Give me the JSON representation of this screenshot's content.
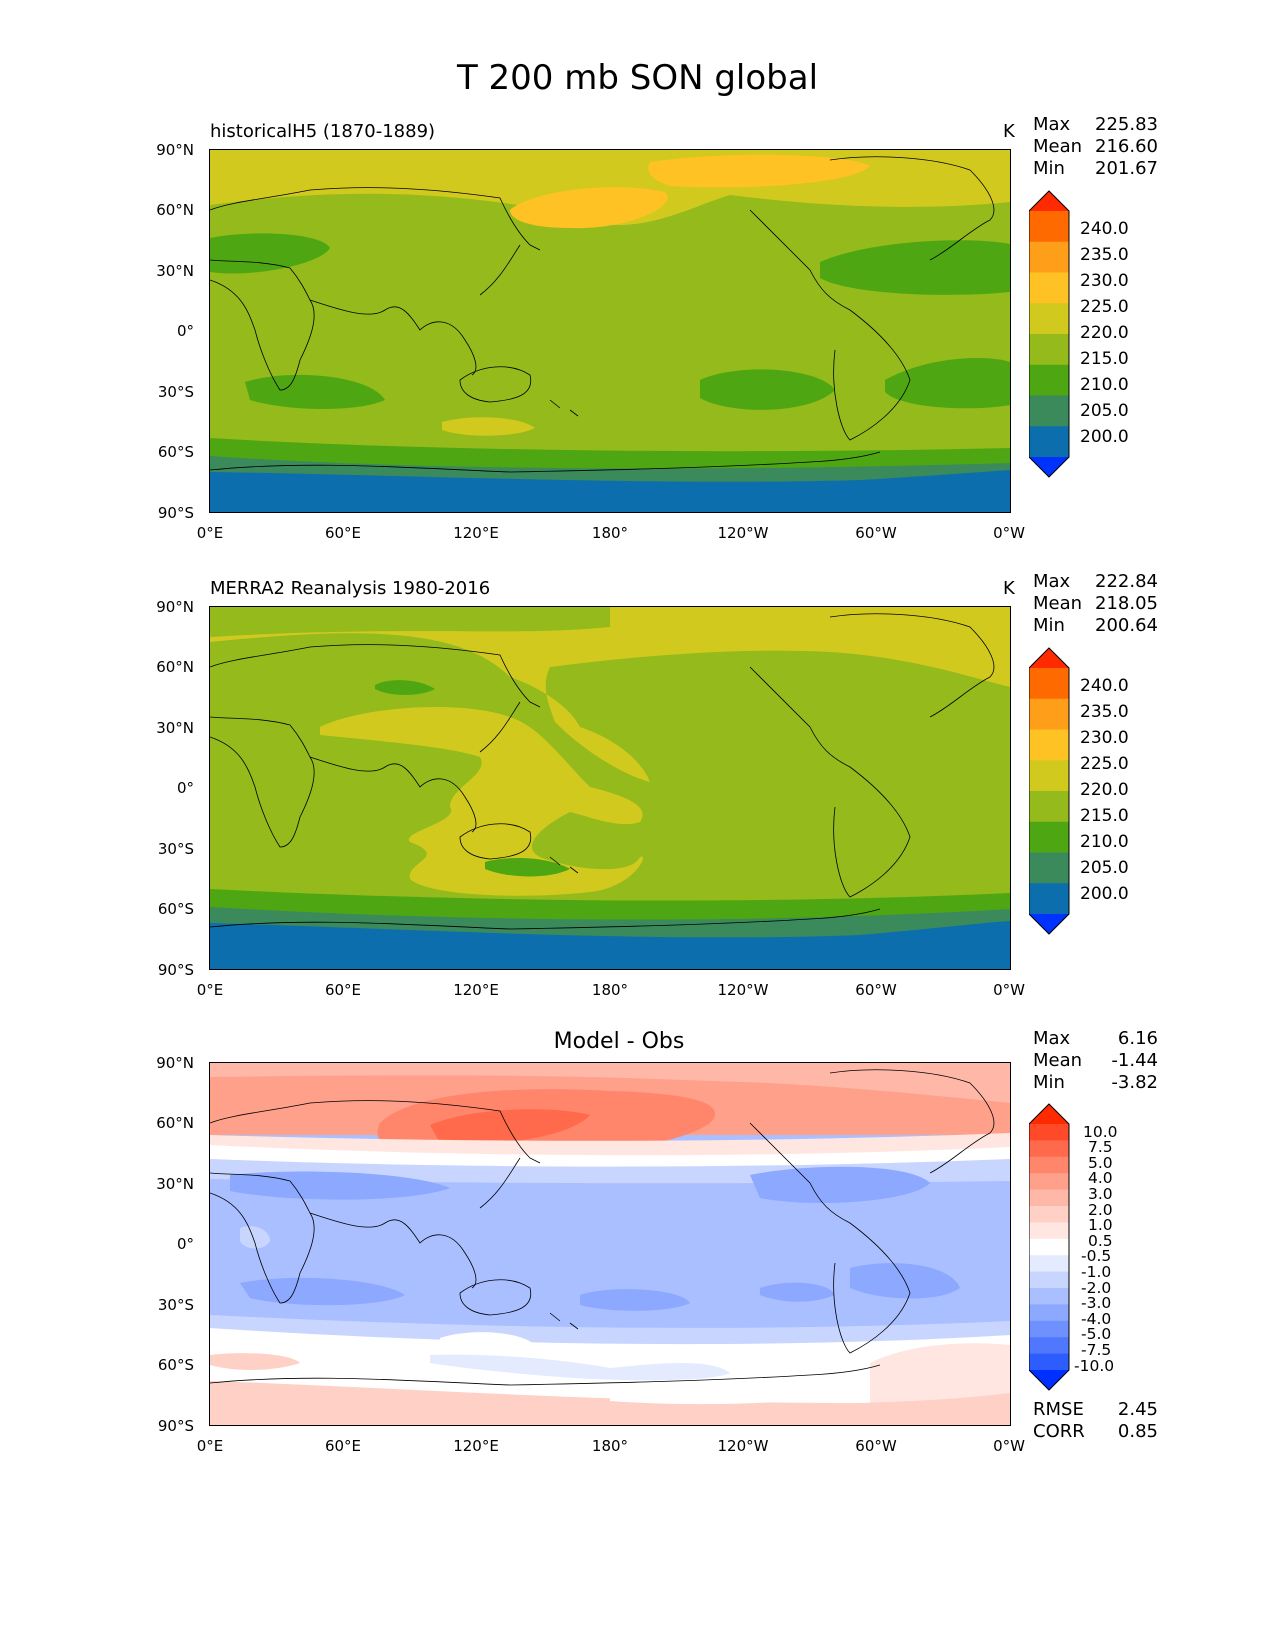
{
  "figure_title": "T 200 mb SON global",
  "x_ticks": [
    "0°E",
    "60°E",
    "120°E",
    "180°",
    "120°W",
    "60°W",
    "0°W"
  ],
  "y_ticks": [
    "90°N",
    "60°N",
    "30°N",
    "0°",
    "30°S",
    "60°S",
    "90°S"
  ],
  "panels": [
    {
      "title": "historicalH5 (1870-1889)",
      "units": "K",
      "stats": [
        {
          "label": "Max",
          "value": "225.83"
        },
        {
          "label": "Mean",
          "value": "216.60"
        },
        {
          "label": "Min",
          "value": "201.67"
        }
      ]
    },
    {
      "title": "MERRA2 Reanalysis 1980-2016",
      "units": "K",
      "stats": [
        {
          "label": "Max",
          "value": "222.84"
        },
        {
          "label": "Mean",
          "value": "218.05"
        },
        {
          "label": "Min",
          "value": "200.64"
        }
      ]
    },
    {
      "title": "Model - Obs",
      "units": "",
      "stats": [
        {
          "label": "Max",
          "value": "6.16"
        },
        {
          "label": "Mean",
          "value": "-1.44"
        },
        {
          "label": "Min",
          "value": "-3.82"
        }
      ],
      "metrics": [
        {
          "label": "RMSE",
          "value": "2.45"
        },
        {
          "label": "CORR",
          "value": "0.85"
        }
      ]
    }
  ],
  "colorbars": {
    "absolute": {
      "labels": [
        "240.0",
        "235.0",
        "230.0",
        "225.0",
        "220.0",
        "215.0",
        "210.0",
        "205.0",
        "200.0"
      ],
      "colors": [
        "#ff2a00",
        "#ff6a00",
        "#ff9e18",
        "#fec224",
        "#d2c91f",
        "#94ba1c",
        "#4ea712",
        "#3a8a5c",
        "#0c6eac",
        "#0032ff"
      ]
    },
    "difference": {
      "labels": [
        "10.0",
        "7.5",
        "5.0",
        "4.0",
        "3.0",
        "2.0",
        "1.0",
        "0.5",
        "-0.5",
        "-1.0",
        "-2.0",
        "-3.0",
        "-4.0",
        "-5.0",
        "-7.5",
        "-10.0"
      ],
      "colors": [
        "#ff2a00",
        "#ff4a2a",
        "#ff6a4c",
        "#ff866a",
        "#ffa08a",
        "#ffb8a8",
        "#ffd0c6",
        "#ffe6e0",
        "#ffffff",
        "#e4ebff",
        "#c8d6ff",
        "#aabfff",
        "#8ca8ff",
        "#6f90ff",
        "#5078ff",
        "#2d5cff",
        "#0030ff"
      ]
    }
  },
  "chart_data": [
    {
      "type": "heatmap",
      "title": "historicalH5 (1870-1889)",
      "units": "K",
      "x_range": [
        0,
        360
      ],
      "y_range": [
        -90,
        90
      ],
      "levels": [
        200.0,
        205.0,
        210.0,
        215.0,
        220.0,
        225.0,
        230.0,
        235.0,
        240.0
      ],
      "max": 225.83,
      "mean": 216.6,
      "min": 201.67
    },
    {
      "type": "heatmap",
      "title": "MERRA2 Reanalysis 1980-2016",
      "units": "K",
      "x_range": [
        0,
        360
      ],
      "y_range": [
        -90,
        90
      ],
      "levels": [
        200.0,
        205.0,
        210.0,
        215.0,
        220.0,
        225.0,
        230.0,
        235.0,
        240.0
      ],
      "max": 222.84,
      "mean": 218.05,
      "min": 200.64
    },
    {
      "type": "heatmap",
      "title": "Model - Obs",
      "units": "",
      "x_range": [
        0,
        360
      ],
      "y_range": [
        -90,
        90
      ],
      "levels": [
        -10.0,
        -7.5,
        -5.0,
        -4.0,
        -3.0,
        -2.0,
        -1.0,
        -0.5,
        0.5,
        1.0,
        2.0,
        3.0,
        4.0,
        5.0,
        7.5,
        10.0
      ],
      "max": 6.16,
      "mean": -1.44,
      "min": -3.82,
      "rmse": 2.45,
      "corr": 0.85
    }
  ]
}
